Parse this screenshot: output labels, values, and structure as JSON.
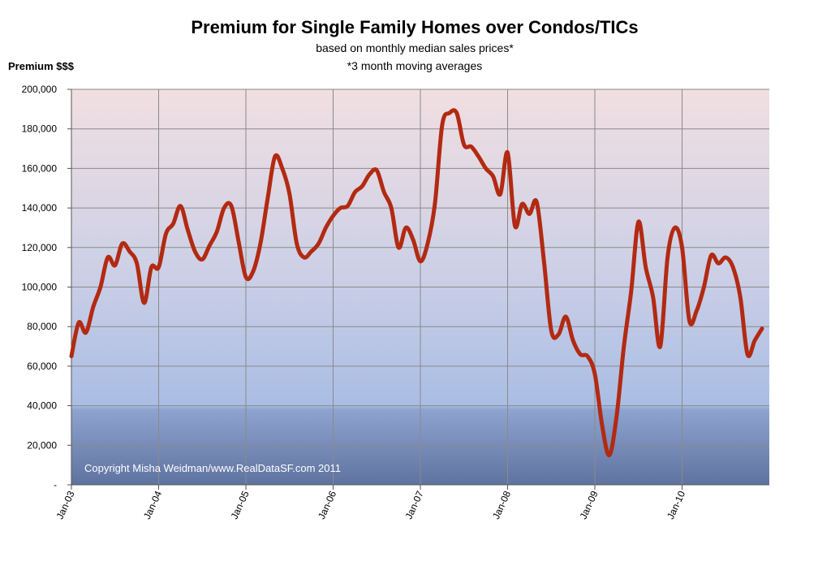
{
  "chart_data": {
    "type": "line",
    "title": "Premium for Single Family Homes over Condos/TICs",
    "subtitle_1": "based on monthly  median sales prices*",
    "subtitle_2": "*3 month moving averages",
    "ylabel": "Premium $$$",
    "xlabel": "",
    "ylim": [
      0,
      200000
    ],
    "y_ticks": [
      0,
      20000,
      40000,
      60000,
      80000,
      100000,
      120000,
      140000,
      160000,
      180000,
      200000
    ],
    "y_tick_labels": [
      "-",
      "20,000",
      "40,000",
      "60,000",
      "80,000",
      "100,000",
      "120,000",
      "140,000",
      "160,000",
      "180,000",
      "200,000"
    ],
    "x_tick_labels": [
      "Jan-03",
      "Jan-04",
      "Jan-05",
      "Jan-06",
      "Jan-07",
      "Jan-08",
      "Jan-09",
      "Jan-10"
    ],
    "grid": true,
    "legend": "none",
    "copyright": "Copyright Misha Weidman/www.RealDataSF.com 2011",
    "line_color": "#b22a12",
    "series": [
      {
        "values": [
          65000,
          82000,
          77000,
          90000,
          100000,
          115000,
          111000,
          122000,
          118000,
          112000,
          92000,
          110000,
          110000,
          127000,
          132000,
          141000,
          129000,
          118000,
          114000,
          121000,
          128000,
          140000,
          141000,
          123000,
          105000,
          108000,
          122000,
          145000,
          166000,
          160000,
          147000,
          122000,
          115000,
          118000,
          122000,
          130000,
          136000,
          140000,
          141000,
          148000,
          151000,
          157000,
          159000,
          148000,
          140000,
          120000,
          130000,
          124000,
          113000,
          122000,
          142000,
          182000,
          188000,
          188000,
          172000,
          171000,
          166000,
          160000,
          156000,
          147000,
          168000,
          131000,
          142000,
          137000,
          143000,
          113000,
          78000,
          76000,
          85000,
          73000,
          66000,
          65000,
          56000,
          30000,
          15000,
          35000,
          70000,
          98000,
          133000,
          110000,
          95000,
          70000,
          115000,
          130000,
          120000,
          83000,
          88000,
          100000,
          116000,
          112000,
          115000,
          110000,
          95000,
          66000,
          73000,
          79000
        ]
      }
    ]
  }
}
